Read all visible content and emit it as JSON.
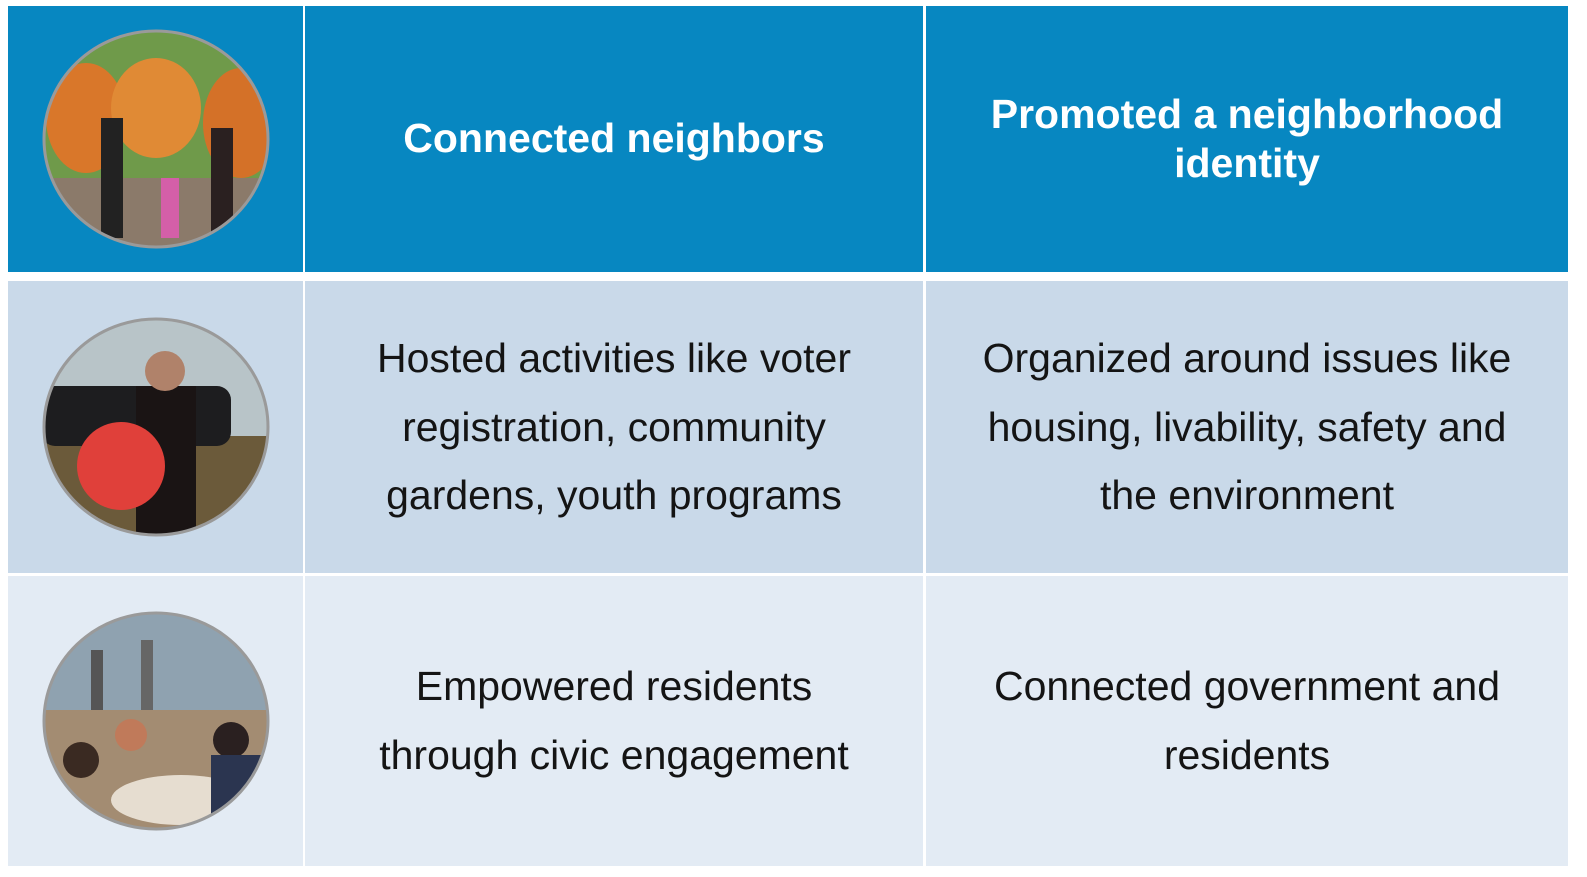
{
  "table": {
    "rows": [
      [
        "Connected neighbors",
        "Promoted a neighborhood identity"
      ],
      [
        "Hosted activities like voter registration, community gardens, youth programs",
        "Organized around issues like housing, livability, safety and the environment"
      ],
      [
        "Empowered residents through civic engagement",
        "Connected government and residents"
      ]
    ]
  }
}
